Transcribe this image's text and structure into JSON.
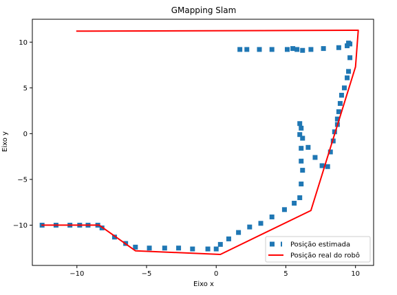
{
  "chart_data": {
    "type": "line",
    "title": "GMapping Slam",
    "xlabel": "Eixo x",
    "ylabel": "Eixo y",
    "xlim": [
      -13.2,
      11.3
    ],
    "ylim": [
      -14.4,
      12.5
    ],
    "xticks": [
      -10,
      -5,
      0,
      5,
      10
    ],
    "yticks": [
      -10,
      -5,
      0,
      5,
      10
    ],
    "tick_labels_x": [
      "−10",
      "−5",
      "0",
      "5",
      "10"
    ],
    "tick_labels_y": [
      "−10",
      "−5",
      "0",
      "5",
      "10"
    ],
    "grid": false,
    "legend_position": "lower-right",
    "series": [
      {
        "name": "Posição estimada",
        "style": "scatter",
        "marker": "square",
        "color": "#1f77b4",
        "x": [
          -12.5,
          -11.5,
          -10.5,
          -9.8,
          -9.2,
          -8.5,
          -8.2,
          -7.3,
          -6.5,
          -5.8,
          -4.8,
          -3.7,
          -2.7,
          -1.7,
          -0.6,
          0.0,
          0.3,
          0.9,
          1.6,
          2.4,
          3.2,
          4.0,
          4.9,
          5.6,
          6.0,
          6.1,
          6.2,
          6.1,
          6.1,
          6.0,
          6.0,
          6.1,
          6.2,
          6.6,
          7.1,
          7.6,
          8.0,
          8.2,
          8.4,
          8.5,
          8.7,
          8.7,
          8.8,
          8.9,
          9.0,
          9.2,
          9.4,
          9.5,
          9.6,
          9.6,
          9.5,
          9.4,
          8.8,
          7.7,
          6.8,
          6.2,
          5.8,
          5.5,
          5.1,
          4.0,
          3.1,
          2.2,
          1.7
        ],
        "y": [
          -10.0,
          -10.0,
          -10.0,
          -10.0,
          -10.0,
          -10.0,
          -10.3,
          -11.3,
          -12.0,
          -12.4,
          -12.5,
          -12.5,
          -12.5,
          -12.6,
          -12.6,
          -12.6,
          -12.1,
          -11.5,
          -10.8,
          -10.2,
          -9.8,
          -9.1,
          -8.3,
          -7.6,
          -7.0,
          -5.5,
          -4.0,
          -3.0,
          -1.6,
          -0.1,
          1.1,
          0.6,
          -0.5,
          -1.5,
          -2.6,
          -3.5,
          -3.6,
          -2.0,
          -0.8,
          0.2,
          1.0,
          1.6,
          2.4,
          3.3,
          4.2,
          5.0,
          6.1,
          6.8,
          8.3,
          9.8,
          9.9,
          9.6,
          9.4,
          9.3,
          9.2,
          9.1,
          9.2,
          9.3,
          9.2,
          9.2,
          9.2,
          9.2,
          9.2
        ]
      },
      {
        "name": "Posição real do robô",
        "style": "line",
        "color": "#ff0000",
        "x": [
          -12.5,
          -8.4,
          -5.8,
          0.3,
          6.8,
          10.0,
          10.2,
          -10.0
        ],
        "y": [
          -10.0,
          -10.0,
          -12.8,
          -13.2,
          -8.4,
          7.3,
          11.3,
          11.2
        ]
      }
    ]
  }
}
